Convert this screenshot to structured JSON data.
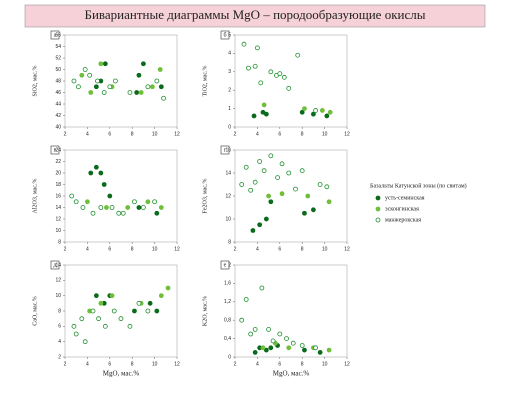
{
  "title": "Бивариантные диаграммы MgO – породообразующие окислы",
  "legend_title": "Базальты Катунской зоны (по свитам)",
  "chart_data": [
    {
      "type": "scatter",
      "panel": "а",
      "ylabel": "SiO2, мас.%",
      "xlim": [
        2,
        12
      ],
      "xticks": [
        2,
        4,
        6,
        8,
        10,
        12
      ],
      "ylim": [
        40,
        56
      ],
      "yticks": [
        40,
        42,
        44,
        46,
        48,
        50,
        52,
        54,
        56
      ],
      "series": [
        {
          "name": "усть-семинская",
          "color": "#0b6b1c",
          "filled": true,
          "x": [
            4.8,
            5.2,
            5.6,
            8.4,
            9.0,
            10.6,
            8.6
          ],
          "values": [
            47,
            48,
            51,
            46,
            51,
            47,
            49
          ]
        },
        {
          "name": "эсконгинская",
          "color": "#6fbf3a",
          "filled": true,
          "x": [
            3.5,
            4.3,
            5.2,
            6.2,
            9.8,
            10.5,
            8.8
          ],
          "values": [
            49,
            46,
            51,
            47,
            47,
            50,
            46
          ]
        },
        {
          "name": "манжерокская",
          "color": "#1f8f2e",
          "filled": false,
          "x": [
            2.8,
            3.2,
            3.8,
            4.2,
            4.9,
            5.5,
            6.0,
            6.5,
            7.8,
            9.4,
            10.2,
            10.8
          ],
          "values": [
            48,
            47,
            50,
            49,
            48,
            46,
            47,
            48,
            46,
            47,
            48,
            45
          ]
        }
      ]
    },
    {
      "type": "scatter",
      "panel": "б",
      "ylabel": "TiO2, мас.%",
      "xlim": [
        2,
        12
      ],
      "xticks": [
        2,
        4,
        6,
        8,
        10,
        12
      ],
      "ylim": [
        0,
        5
      ],
      "yticks": [
        0,
        1,
        2,
        3,
        4,
        5
      ],
      "series": [
        {
          "color": "#0b6b1c",
          "filled": true,
          "x": [
            3.7,
            4.5,
            4.8,
            8.0,
            9.0,
            10.2
          ],
          "values": [
            0.6,
            0.8,
            0.7,
            0.8,
            0.7,
            0.6
          ]
        },
        {
          "color": "#6fbf3a",
          "filled": true,
          "x": [
            4.6,
            8.2,
            9.8,
            10.5
          ],
          "values": [
            1.2,
            1.0,
            0.9,
            0.8
          ]
        },
        {
          "color": "#1f8f2e",
          "filled": false,
          "x": [
            2.8,
            3.2,
            3.8,
            4.0,
            4.3,
            5.2,
            5.7,
            6.0,
            6.4,
            6.8,
            7.6,
            9.2
          ],
          "values": [
            4.5,
            3.2,
            3.3,
            4.3,
            2.4,
            3.0,
            2.8,
            2.9,
            2.7,
            2.1,
            3.9,
            0.9
          ]
        }
      ]
    },
    {
      "type": "scatter",
      "panel": "в",
      "ylabel": "Al2O3, мас.%",
      "xlim": [
        2,
        12
      ],
      "xticks": [
        2,
        4,
        6,
        8,
        10,
        12
      ],
      "ylim": [
        8,
        24
      ],
      "yticks": [
        8,
        10,
        12,
        14,
        16,
        18,
        20,
        22,
        24
      ],
      "series": [
        {
          "color": "#0b6b1c",
          "filled": true,
          "x": [
            4.3,
            4.8,
            5.2,
            5.5,
            6.0,
            8.6,
            10.2
          ],
          "values": [
            20,
            21,
            20,
            18,
            16,
            14,
            13
          ]
        },
        {
          "color": "#6fbf3a",
          "filled": true,
          "x": [
            4.0,
            5.7,
            7.6,
            9.4,
            10.6
          ],
          "values": [
            15,
            14,
            14,
            15,
            14
          ]
        },
        {
          "color": "#1f8f2e",
          "filled": false,
          "x": [
            2.6,
            3.0,
            3.6,
            4.5,
            5.2,
            6.2,
            6.8,
            7.2,
            8.2,
            9.0,
            10.0
          ],
          "values": [
            16,
            15,
            14,
            13,
            14,
            14,
            13,
            13,
            15,
            14,
            15
          ]
        }
      ]
    },
    {
      "type": "scatter",
      "panel": "г",
      "ylabel": "Fe2O3, мас.%",
      "xlim": [
        2,
        12
      ],
      "xticks": [
        2,
        4,
        6,
        8,
        10,
        12
      ],
      "ylim": [
        8,
        16
      ],
      "yticks": [
        8,
        10,
        12,
        14,
        16
      ],
      "series": [
        {
          "color": "#0b6b1c",
          "filled": true,
          "x": [
            3.6,
            4.2,
            4.8,
            5.2,
            8.2,
            9.0
          ],
          "values": [
            9,
            9.5,
            10,
            11.5,
            10.5,
            10.8
          ]
        },
        {
          "color": "#6fbf3a",
          "filled": true,
          "x": [
            5.0,
            6.2,
            8.5,
            10.4
          ],
          "values": [
            12,
            12.2,
            12,
            11.5
          ]
        },
        {
          "color": "#1f8f2e",
          "filled": false,
          "x": [
            2.6,
            3.0,
            3.4,
            3.8,
            4.2,
            4.6,
            5.2,
            5.8,
            6.2,
            6.8,
            7.4,
            8.0,
            9.6,
            10.2
          ],
          "values": [
            13,
            14.5,
            12.5,
            13.2,
            15,
            14.2,
            15.5,
            13.6,
            14.8,
            14,
            12.6,
            14.2,
            13,
            12.8
          ]
        }
      ]
    },
    {
      "type": "scatter",
      "panel": "д",
      "ylabel": "CaO, мас.%",
      "xlabel": "MgO, мас.%",
      "xlim": [
        2,
        12
      ],
      "xticks": [
        2,
        4,
        6,
        8,
        10,
        12
      ],
      "ylim": [
        2,
        14
      ],
      "yticks": [
        2,
        4,
        6,
        8,
        10,
        12,
        14
      ],
      "series": [
        {
          "color": "#0b6b1c",
          "filled": true,
          "x": [
            4.8,
            5.5,
            6.0,
            8.2,
            9.6,
            10.2
          ],
          "values": [
            10,
            9,
            10,
            8,
            9,
            8
          ]
        },
        {
          "color": "#6fbf3a",
          "filled": true,
          "x": [
            4.2,
            5.2,
            6.2,
            8.8,
            10.6,
            11.2
          ],
          "values": [
            8,
            9,
            10,
            9,
            10,
            11
          ]
        },
        {
          "color": "#1f8f2e",
          "filled": false,
          "x": [
            2.8,
            3.0,
            3.5,
            3.8,
            4.5,
            5.0,
            5.6,
            6.4,
            7.0,
            7.8,
            8.6,
            9.4
          ],
          "values": [
            6,
            5,
            7,
            4,
            8,
            7,
            6,
            8,
            7,
            6,
            9,
            8
          ]
        }
      ]
    },
    {
      "type": "scatter",
      "panel": "е",
      "ylabel": "K2O, мас.%",
      "xlabel": "MgO, мас.%",
      "xlim": [
        2,
        12
      ],
      "xticks": [
        2,
        4,
        6,
        8,
        10,
        12
      ],
      "ylim": [
        0,
        2
      ],
      "yticks": [
        0,
        {
          "value": 0.4,
          "label": "0,4"
        },
        {
          "value": 0.8,
          "label": "0,8"
        },
        {
          "value": 1.2,
          "label": "1,2"
        },
        {
          "value": 1.6,
          "label": "1,6"
        },
        2
      ],
      "series": [
        {
          "color": "#0b6b1c",
          "filled": true,
          "x": [
            3.8,
            4.2,
            4.8,
            5.2,
            5.8,
            8.2,
            9.6
          ],
          "values": [
            0.1,
            0.2,
            0.15,
            0.2,
            0.25,
            0.15,
            0.1
          ]
        },
        {
          "color": "#6fbf3a",
          "filled": true,
          "x": [
            4.5,
            5.6,
            6.8,
            9.0,
            10.4
          ],
          "values": [
            0.2,
            0.3,
            0.2,
            0.2,
            0.15
          ]
        },
        {
          "color": "#1f8f2e",
          "filled": false,
          "x": [
            2.6,
            3.0,
            3.4,
            3.8,
            4.4,
            5.0,
            5.4,
            6.0,
            6.6,
            7.2,
            8.0,
            9.2
          ],
          "values": [
            0.8,
            1.25,
            0.5,
            0.6,
            1.5,
            0.6,
            0.35,
            0.5,
            0.4,
            0.3,
            0.25,
            0.2
          ]
        }
      ]
    }
  ]
}
